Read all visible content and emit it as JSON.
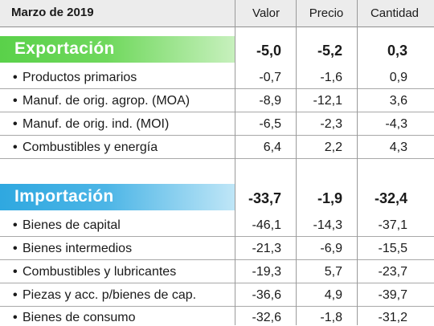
{
  "header": {
    "title": "Marzo de 2019",
    "columns": [
      "Valor",
      "Precio",
      "Cantidad"
    ]
  },
  "colors": {
    "export_band": "#5ad14a",
    "export_band_light": "#c7f0bd",
    "import_band": "#2fa8e0",
    "import_band_light": "#bfe6f7"
  },
  "sections": [
    {
      "label": "Exportación",
      "totals": [
        "-5,0",
        "-5,2",
        "0,3"
      ],
      "rows": [
        {
          "label": "Productos primarios",
          "values": [
            "-0,7",
            "-1,6",
            "0,9"
          ]
        },
        {
          "label": "Manuf. de orig. agrop. (MOA)",
          "values": [
            "-8,9",
            "-12,1",
            "3,6"
          ]
        },
        {
          "label": "Manuf. de orig. ind. (MOI)",
          "values": [
            "-6,5",
            "-2,3",
            "-4,3"
          ]
        },
        {
          "label": "Combustibles y energía",
          "values": [
            "6,4",
            "2,2",
            "4,3"
          ]
        }
      ]
    },
    {
      "label": "Importación",
      "totals": [
        "-33,7",
        "-1,9",
        "-32,4"
      ],
      "rows": [
        {
          "label": "Bienes de capital",
          "values": [
            "-46,1",
            "-14,3",
            "-37,1"
          ]
        },
        {
          "label": "Bienes intermedios",
          "values": [
            "-21,3",
            "-6,9",
            "-15,5"
          ]
        },
        {
          "label": "Combustibles y lubricantes",
          "values": [
            "-19,3",
            "5,7",
            "-23,7"
          ]
        },
        {
          "label": "Piezas y acc. p/bienes de cap.",
          "values": [
            "-36,6",
            "4,9",
            "-39,7"
          ]
        },
        {
          "label": "Bienes de consumo",
          "values": [
            "-32,6",
            "-1,8",
            "-31,2"
          ]
        }
      ]
    }
  ]
}
